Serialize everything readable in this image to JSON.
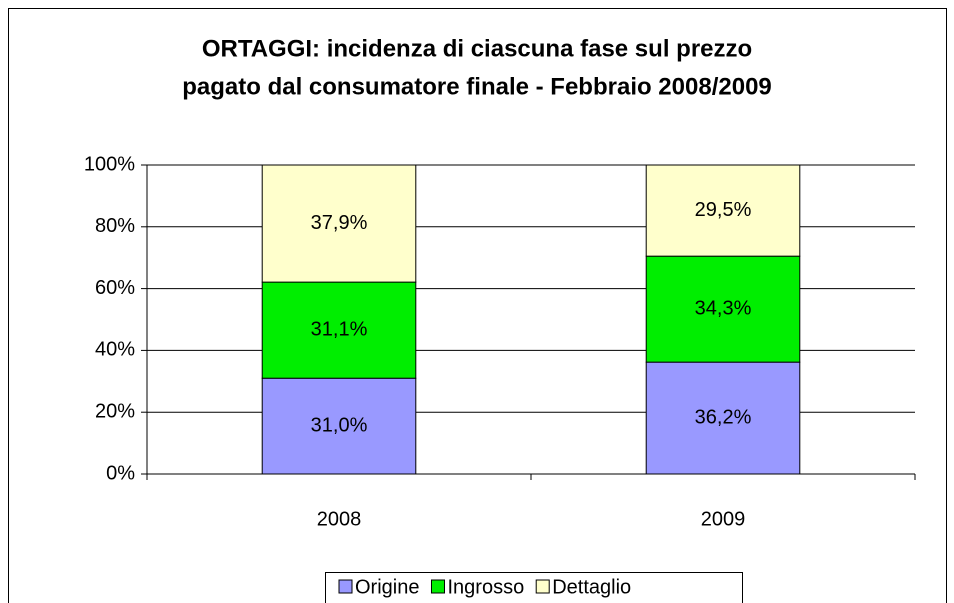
{
  "chart_data": {
    "type": "stacked_bar",
    "title": [
      "ORTAGGI: incidenza di ciascuna fase sul prezzo",
      "pagato dal consumatore finale - Febbraio 2008/2009"
    ],
    "categories": [
      "2008",
      "2009"
    ],
    "series": [
      {
        "name": "Origine",
        "color": "#9999ff",
        "values": [
          31.0,
          36.2
        ],
        "value_labels": [
          "31,0%",
          "36,2%"
        ]
      },
      {
        "name": "Ingrosso",
        "color": "#00ee00",
        "values": [
          31.1,
          34.3
        ],
        "value_labels": [
          "31,1%",
          "34,3%"
        ]
      },
      {
        "name": "Dettaglio",
        "color": "#ffffcc",
        "values": [
          37.9,
          29.5
        ],
        "value_labels": [
          "37,9%",
          "29,5%"
        ]
      }
    ],
    "ylim": [
      0,
      100
    ],
    "yticks": [
      {
        "value": 0,
        "label": "0%"
      },
      {
        "value": 20,
        "label": "20%"
      },
      {
        "value": 40,
        "label": "40%"
      },
      {
        "value": 60,
        "label": "60%"
      },
      {
        "value": 80,
        "label": "80%"
      },
      {
        "value": 100,
        "label": "100%"
      }
    ],
    "grid": true,
    "legend": "bottom"
  }
}
